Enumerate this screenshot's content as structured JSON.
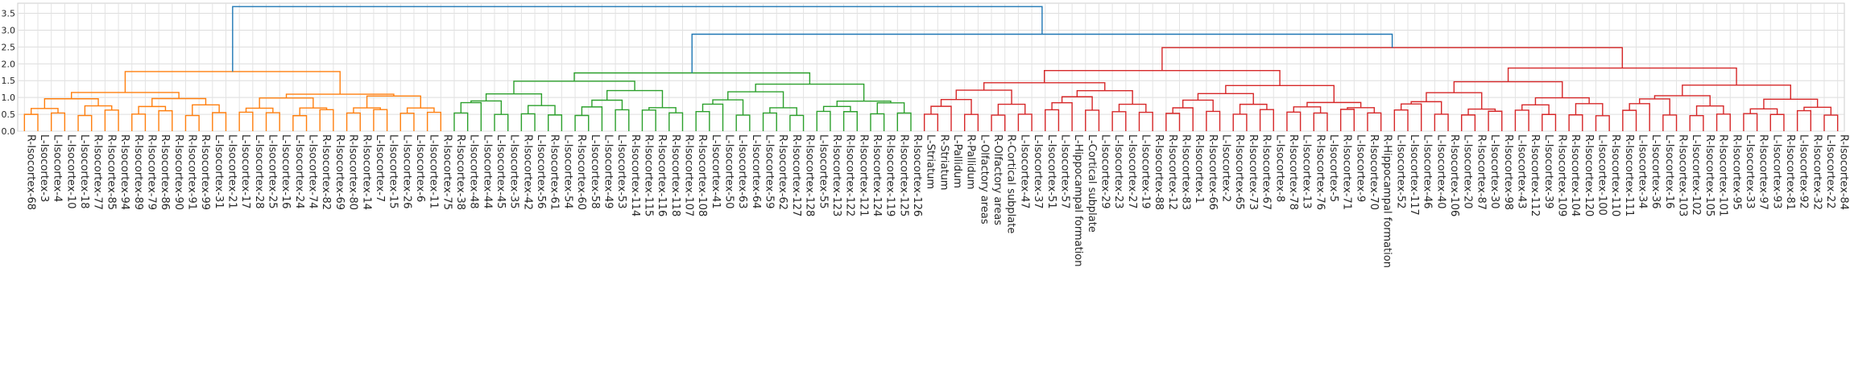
{
  "chart_data": {
    "type": "dendrogram",
    "ylim": [
      0,
      3.8
    ],
    "yticks": [
      "0.0",
      "0.5",
      "1.0",
      "1.5",
      "2.0",
      "2.5",
      "3.0",
      "3.5"
    ],
    "grid": true,
    "leaves": [
      "R-Isocortex-68",
      "L-Isocortex-3",
      "L-Isocortex-4",
      "L-Isocortex-10",
      "L-Isocortex-18",
      "R-Isocortex-77",
      "R-Isocortex-85",
      "R-Isocortex-94",
      "R-Isocortex-89",
      "R-Isocortex-79",
      "R-Isocortex-86",
      "R-Isocortex-90",
      "R-Isocortex-91",
      "R-Isocortex-99",
      "L-Isocortex-31",
      "L-Isocortex-21",
      "L-Isocortex-17",
      "L-Isocortex-28",
      "L-Isocortex-25",
      "L-Isocortex-16",
      "L-Isocortex-24",
      "L-Isocortex-74",
      "R-Isocortex-82",
      "R-Isocortex-69",
      "R-Isocortex-80",
      "R-Isocortex-14",
      "L-Isocortex-7",
      "L-Isocortex-15",
      "L-Isocortex-26",
      "L-Isocortex-6",
      "L-Isocortex-11",
      "R-Isocortex-75",
      "R-Isocortex-38",
      "L-Isocortex-48",
      "L-Isocortex-44",
      "L-Isocortex-45",
      "L-Isocortex-35",
      "R-Isocortex-42",
      "L-Isocortex-56",
      "R-Isocortex-61",
      "L-Isocortex-54",
      "R-Isocortex-60",
      "L-Isocortex-58",
      "L-Isocortex-49",
      "L-Isocortex-53",
      "R-Isocortex-114",
      "R-Isocortex-115",
      "R-Isocortex-116",
      "R-Isocortex-118",
      "R-Isocortex-107",
      "R-Isocortex-108",
      "L-Isocortex-41",
      "L-Isocortex-50",
      "L-Isocortex-63",
      "L-Isocortex-64",
      "L-Isocortex-59",
      "R-Isocortex-62",
      "R-Isocortex-127",
      "R-Isocortex-128",
      "L-Isocortex-55",
      "R-Isocortex-123",
      "R-Isocortex-122",
      "R-Isocortex-121",
      "R-Isocortex-124",
      "R-Isocortex-119",
      "R-Isocortex-125",
      "R-Isocortex-126",
      "L-Striatum",
      "R-Striatum",
      "L-Pallidum",
      "R-Pallidum",
      "L-Olfactory areas",
      "R-Olfactory areas",
      "R-Cortical subplate",
      "L-Isocortex-47",
      "L-Isocortex-37",
      "L-Isocortex-51",
      "L-Isocortex-57",
      "L-Hippocampal formation",
      "L-Cortical subplate",
      "L-Isocortex-29",
      "L-Isocortex-23",
      "L-Isocortex-27",
      "L-Isocortex-19",
      "R-Isocortex-88",
      "R-Isocortex-12",
      "R-Isocortex-83",
      "R-Isocortex-1",
      "R-Isocortex-66",
      "L-Isocortex-2",
      "R-Isocortex-65",
      "R-Isocortex-73",
      "R-Isocortex-67",
      "L-Isocortex-8",
      "R-Isocortex-78",
      "L-Isocortex-13",
      "R-Isocortex-76",
      "L-Isocortex-5",
      "R-Isocortex-71",
      "L-Isocortex-9",
      "R-Isocortex-70",
      "R-Hippocampal formation",
      "L-Isocortex-52",
      "L-Isocortex-117",
      "L-Isocortex-46",
      "L-Isocortex-40",
      "R-Isocortex-106",
      "L-Isocortex-20",
      "R-Isocortex-87",
      "L-Isocortex-30",
      "R-Isocortex-98",
      "L-Isocortex-43",
      "R-Isocortex-112",
      "L-Isocortex-39",
      "R-Isocortex-109",
      "R-Isocortex-104",
      "R-Isocortex-120",
      "L-Isocortex-100",
      "R-Isocortex-110",
      "R-Isocortex-111",
      "L-Isocortex-34",
      "L-Isocortex-36",
      "L-Isocortex-16",
      "R-Isocortex-103",
      "L-Isocortex-102",
      "R-Isocortex-105",
      "R-Isocortex-101",
      "R-Isocortex-95",
      "L-Isocortex-33",
      "R-Isocortex-97",
      "L-Isocortex-93",
      "R-Isocortex-81",
      "L-Isocortex-92",
      "R-Isocortex-32",
      "L-Isocortex-22",
      "R-Isocortex-84"
    ],
    "clusters": [
      {
        "color": "#ff7f0e",
        "leaf_range": [
          0,
          31
        ]
      },
      {
        "color": "#2ca02c",
        "leaf_range": [
          32,
          66
        ]
      },
      {
        "color": "#d62728",
        "leaf_range": [
          67,
          135
        ]
      }
    ],
    "top_links": [
      {
        "color": "#1f77b4",
        "height": 3.7,
        "joins": "orange+rest"
      },
      {
        "color": "#1f77b4",
        "height": 2.88,
        "joins": "green+red"
      }
    ],
    "cluster_heights": {
      "orange": 1.77,
      "green": 1.73,
      "red": 2.48
    }
  }
}
